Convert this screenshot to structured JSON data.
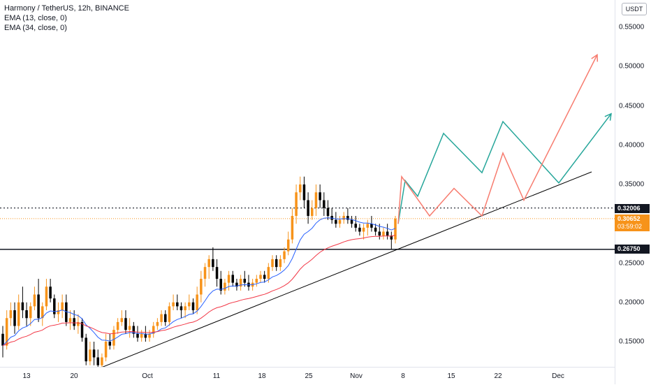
{
  "legend": {
    "title": "Harmony / TetherUS, 12h, BINANCE",
    "ema13": "EMA (13, close, 0)",
    "ema34": "EMA (34, close, 0)"
  },
  "currency": "USDT",
  "price_axis": {
    "ticks": [
      "0.55000",
      "0.50000",
      "0.45000",
      "0.40000",
      "0.35000",
      "0.25000",
      "0.20000",
      "0.15000"
    ],
    "tick_values": [
      0.55,
      0.5,
      0.45,
      0.4,
      0.35,
      0.25,
      0.2,
      0.15
    ]
  },
  "time_axis": {
    "ticks": [
      "13",
      "20",
      "Oct",
      "11",
      "18",
      "25",
      "Nov",
      "8",
      "15",
      "22",
      "Dec"
    ]
  },
  "labels": {
    "resistance": "0.32006",
    "current_price": "0.30652",
    "countdown": "03:59:02",
    "support": "0.26750"
  },
  "colors": {
    "up": "#f7931a",
    "down": "#000000",
    "ema13": "#2962ff",
    "ema34": "#f23645",
    "projection_teal": "#26a69a",
    "projection_red": "#f77c6f",
    "trendline": "#000000",
    "current_price_line": "#f7931a"
  },
  "chart_data": {
    "type": "candlestick",
    "symbol": "Harmony / TetherUS",
    "interval": "12h",
    "exchange": "BINANCE",
    "ylim": [
      0.11,
      0.575
    ],
    "x_ticks": [
      "13",
      "20",
      "Oct",
      "11",
      "18",
      "25",
      "Nov",
      "8",
      "15",
      "22",
      "Dec"
    ],
    "horizontal_levels": [
      {
        "value": 0.32006,
        "style": "dotted"
      },
      {
        "value": 0.2675,
        "style": "solid"
      },
      {
        "value": 0.30652,
        "style": "dotted-orange"
      }
    ],
    "candles": [
      [
        0.16,
        0.17,
        0.13,
        0.145
      ],
      [
        0.145,
        0.19,
        0.14,
        0.18
      ],
      [
        0.18,
        0.2,
        0.17,
        0.19
      ],
      [
        0.19,
        0.2,
        0.16,
        0.17
      ],
      [
        0.17,
        0.21,
        0.165,
        0.2
      ],
      [
        0.2,
        0.22,
        0.18,
        0.19
      ],
      [
        0.19,
        0.2,
        0.17,
        0.18
      ],
      [
        0.18,
        0.2,
        0.17,
        0.195
      ],
      [
        0.195,
        0.22,
        0.19,
        0.21
      ],
      [
        0.21,
        0.23,
        0.175,
        0.18
      ],
      [
        0.18,
        0.2,
        0.17,
        0.195
      ],
      [
        0.195,
        0.23,
        0.19,
        0.22
      ],
      [
        0.22,
        0.23,
        0.2,
        0.205
      ],
      [
        0.205,
        0.21,
        0.18,
        0.185
      ],
      [
        0.185,
        0.2,
        0.175,
        0.19
      ],
      [
        0.19,
        0.21,
        0.18,
        0.2
      ],
      [
        0.2,
        0.21,
        0.17,
        0.175
      ],
      [
        0.175,
        0.19,
        0.165,
        0.18
      ],
      [
        0.18,
        0.19,
        0.165,
        0.17
      ],
      [
        0.17,
        0.185,
        0.16,
        0.175
      ],
      [
        0.175,
        0.18,
        0.15,
        0.155
      ],
      [
        0.155,
        0.16,
        0.12,
        0.125
      ],
      [
        0.125,
        0.15,
        0.12,
        0.14
      ],
      [
        0.14,
        0.15,
        0.12,
        0.13
      ],
      [
        0.13,
        0.14,
        0.115,
        0.12
      ],
      [
        0.12,
        0.135,
        0.115,
        0.13
      ],
      [
        0.13,
        0.16,
        0.125,
        0.15
      ],
      [
        0.15,
        0.16,
        0.14,
        0.145
      ],
      [
        0.145,
        0.17,
        0.14,
        0.165
      ],
      [
        0.165,
        0.18,
        0.16,
        0.175
      ],
      [
        0.175,
        0.19,
        0.17,
        0.18
      ],
      [
        0.18,
        0.19,
        0.16,
        0.165
      ],
      [
        0.165,
        0.18,
        0.155,
        0.17
      ],
      [
        0.17,
        0.175,
        0.155,
        0.16
      ],
      [
        0.16,
        0.17,
        0.15,
        0.155
      ],
      [
        0.155,
        0.165,
        0.15,
        0.16
      ],
      [
        0.16,
        0.17,
        0.15,
        0.155
      ],
      [
        0.155,
        0.165,
        0.15,
        0.16
      ],
      [
        0.16,
        0.175,
        0.155,
        0.17
      ],
      [
        0.17,
        0.18,
        0.165,
        0.175
      ],
      [
        0.175,
        0.19,
        0.17,
        0.185
      ],
      [
        0.185,
        0.19,
        0.17,
        0.175
      ],
      [
        0.175,
        0.2,
        0.17,
        0.195
      ],
      [
        0.195,
        0.21,
        0.19,
        0.2
      ],
      [
        0.2,
        0.21,
        0.19,
        0.195
      ],
      [
        0.195,
        0.2,
        0.18,
        0.19
      ],
      [
        0.19,
        0.2,
        0.18,
        0.195
      ],
      [
        0.195,
        0.21,
        0.19,
        0.2
      ],
      [
        0.2,
        0.205,
        0.185,
        0.19
      ],
      [
        0.19,
        0.22,
        0.185,
        0.21
      ],
      [
        0.21,
        0.24,
        0.2,
        0.23
      ],
      [
        0.23,
        0.25,
        0.22,
        0.245
      ],
      [
        0.245,
        0.26,
        0.23,
        0.255
      ],
      [
        0.255,
        0.27,
        0.24,
        0.245
      ],
      [
        0.245,
        0.255,
        0.22,
        0.23
      ],
      [
        0.23,
        0.24,
        0.21,
        0.215
      ],
      [
        0.215,
        0.23,
        0.21,
        0.225
      ],
      [
        0.225,
        0.24,
        0.215,
        0.235
      ],
      [
        0.235,
        0.24,
        0.22,
        0.225
      ],
      [
        0.225,
        0.23,
        0.215,
        0.22
      ],
      [
        0.22,
        0.235,
        0.215,
        0.23
      ],
      [
        0.23,
        0.24,
        0.22,
        0.225
      ],
      [
        0.225,
        0.235,
        0.215,
        0.22
      ],
      [
        0.22,
        0.23,
        0.215,
        0.225
      ],
      [
        0.225,
        0.235,
        0.22,
        0.23
      ],
      [
        0.23,
        0.24,
        0.225,
        0.235
      ],
      [
        0.235,
        0.24,
        0.225,
        0.23
      ],
      [
        0.23,
        0.25,
        0.225,
        0.245
      ],
      [
        0.245,
        0.26,
        0.24,
        0.255
      ],
      [
        0.255,
        0.26,
        0.24,
        0.245
      ],
      [
        0.245,
        0.26,
        0.24,
        0.255
      ],
      [
        0.255,
        0.27,
        0.25,
        0.265
      ],
      [
        0.265,
        0.29,
        0.26,
        0.28
      ],
      [
        0.28,
        0.32,
        0.275,
        0.31
      ],
      [
        0.31,
        0.35,
        0.3,
        0.34
      ],
      [
        0.34,
        0.36,
        0.33,
        0.35
      ],
      [
        0.35,
        0.36,
        0.32,
        0.33
      ],
      [
        0.33,
        0.34,
        0.3,
        0.31
      ],
      [
        0.31,
        0.33,
        0.305,
        0.32
      ],
      [
        0.32,
        0.35,
        0.31,
        0.34
      ],
      [
        0.34,
        0.35,
        0.32,
        0.33
      ],
      [
        0.33,
        0.34,
        0.31,
        0.32
      ],
      [
        0.32,
        0.33,
        0.305,
        0.31
      ],
      [
        0.31,
        0.32,
        0.3,
        0.305
      ],
      [
        0.305,
        0.315,
        0.295,
        0.3
      ],
      [
        0.3,
        0.31,
        0.295,
        0.305
      ],
      [
        0.305,
        0.315,
        0.3,
        0.31
      ],
      [
        0.31,
        0.32,
        0.3,
        0.305
      ],
      [
        0.305,
        0.31,
        0.295,
        0.3
      ],
      [
        0.3,
        0.31,
        0.29,
        0.295
      ],
      [
        0.295,
        0.3,
        0.285,
        0.29
      ],
      [
        0.29,
        0.3,
        0.28,
        0.295
      ],
      [
        0.295,
        0.305,
        0.285,
        0.3
      ],
      [
        0.3,
        0.31,
        0.29,
        0.295
      ],
      [
        0.295,
        0.3,
        0.285,
        0.29
      ],
      [
        0.29,
        0.3,
        0.28,
        0.285
      ],
      [
        0.285,
        0.295,
        0.28,
        0.29
      ],
      [
        0.29,
        0.3,
        0.28,
        0.285
      ],
      [
        0.285,
        0.29,
        0.2675,
        0.28
      ],
      [
        0.28,
        0.31,
        0.275,
        0.30652
      ]
    ],
    "projections": [
      {
        "name": "teal",
        "points": [
          [
            0.57,
            0.3
          ],
          [
            0.58,
            0.355
          ],
          [
            0.598,
            0.335
          ],
          [
            0.635,
            0.415
          ],
          [
            0.69,
            0.365
          ],
          [
            0.72,
            0.43
          ],
          [
            0.8,
            0.352
          ],
          [
            0.875,
            0.44
          ]
        ]
      },
      {
        "name": "red",
        "points": [
          [
            0.57,
            0.3
          ],
          [
            0.575,
            0.36
          ],
          [
            0.615,
            0.31
          ],
          [
            0.65,
            0.345
          ],
          [
            0.69,
            0.31
          ],
          [
            0.72,
            0.39
          ],
          [
            0.75,
            0.33
          ],
          [
            0.855,
            0.515
          ]
        ]
      }
    ]
  }
}
